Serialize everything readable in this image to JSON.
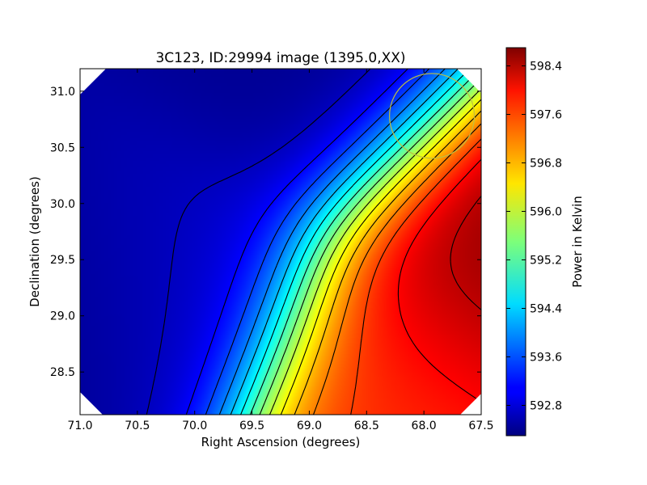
{
  "chart_data": {
    "type": "heatmap",
    "title": "3C123, ID:29994 image (1395.0,XX)",
    "xlabel": "Right Ascension (degrees)",
    "ylabel": "Declination (degrees)",
    "colorbar_label": "Power in Kelvin",
    "xlim": [
      71.0,
      67.5
    ],
    "ylim": [
      28.12,
      31.2
    ],
    "x_ticks": [
      71.0,
      70.5,
      70.0,
      69.5,
      69.0,
      68.5,
      68.0,
      67.5
    ],
    "x_tick_labels": [
      "71.0",
      "70.5",
      "70.0",
      "69.5",
      "69.0",
      "68.5",
      "68.0",
      "67.5"
    ],
    "y_ticks": [
      28.5,
      29.0,
      29.5,
      30.0,
      30.5,
      31.0
    ],
    "y_tick_labels": [
      "28.5",
      "29.0",
      "29.5",
      "30.0",
      "30.5",
      "31.0"
    ],
    "colorbar_range": [
      592.3,
      598.7
    ],
    "colorbar_ticks": [
      592.8,
      593.6,
      594.4,
      595.2,
      596.0,
      596.8,
      597.6,
      598.4
    ],
    "colorbar_tick_labels": [
      "592.8",
      "593.6",
      "594.4",
      "595.2",
      "596.0",
      "596.8",
      "597.6",
      "598.4"
    ],
    "colormap": "jet",
    "contours": "black",
    "grid": false,
    "features": [
      {
        "kind": "minimum",
        "ra": 70.9,
        "dec": 29.25,
        "value": 592.3
      },
      {
        "kind": "minimum",
        "ra": 70.2,
        "dec": 29.38,
        "value": 592.9
      },
      {
        "kind": "minimum",
        "ra": 69.1,
        "dec": 31.05,
        "value": 592.4
      },
      {
        "kind": "maximum",
        "ra": 67.5,
        "dec": 29.5,
        "value": 598.7
      },
      {
        "kind": "maximum",
        "ra": 68.2,
        "dec": 28.4,
        "value": 597.6
      }
    ],
    "beam_circle": {
      "ra": 67.93,
      "dec": 30.78,
      "radius_deg": 0.37,
      "color": "#bfbf3f"
    }
  }
}
